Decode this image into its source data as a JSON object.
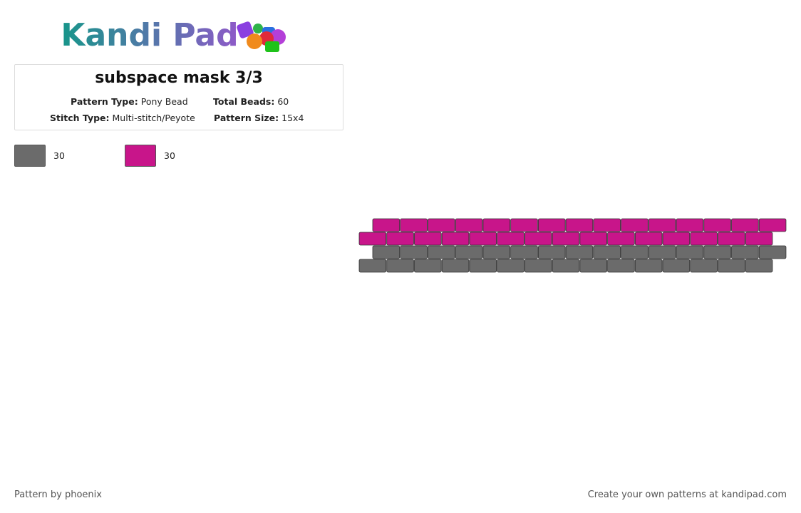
{
  "header": {
    "logo": "Kandi Pad"
  },
  "card": {
    "title": "subspace mask 3/3",
    "fields": [
      {
        "label": "Pattern Type:",
        "value": "Pony Bead"
      },
      {
        "label": "Total Beads:",
        "value": "60"
      },
      {
        "label": "Stitch Type:",
        "value": "Multi-stitch/Peyote"
      },
      {
        "label": "Pattern Size:",
        "value": "15x4"
      }
    ]
  },
  "palette": [
    {
      "color": "#6b6b6b",
      "count": "30"
    },
    {
      "color": "#c8158a",
      "count": "30"
    }
  ],
  "footer": {
    "left": "Pattern by phoenix",
    "right": "Create your own patterns at kandipad.com"
  }
}
